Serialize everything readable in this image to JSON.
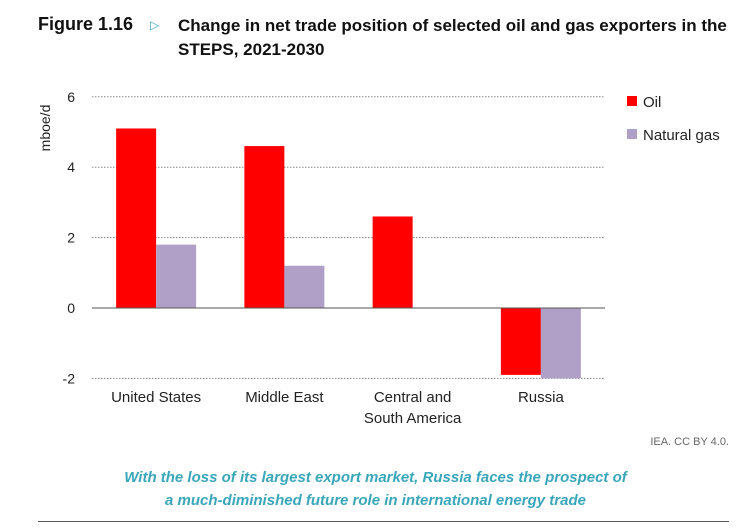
{
  "figure_label": "Figure 1.16",
  "source": "IEA. CC BY 4.0.",
  "caption": [
    "With the loss of its largest export market, Russia faces the prospect of",
    "a much-diminished future role in international energy trade"
  ],
  "chart_data": {
    "type": "bar",
    "title": "Change in net trade position of selected oil and gas exporters in the STEPS, 2021-2030",
    "ylabel": "mboe/d",
    "xlabel": "",
    "ylim": [
      -2,
      6
    ],
    "yticks": [
      -2,
      0,
      2,
      4,
      6
    ],
    "grid": true,
    "legend": "top-right",
    "categories": [
      "United States",
      "Middle East",
      "Central and\nSouth America",
      "Russia"
    ],
    "series": [
      {
        "name": "Oil",
        "color": "#ff0000",
        "values": [
          5.1,
          4.6,
          2.6,
          -1.9
        ]
      },
      {
        "name": "Natural gas",
        "color": "#b0a0c8",
        "values": [
          1.8,
          1.2,
          0.0,
          -2.0
        ]
      }
    ]
  }
}
